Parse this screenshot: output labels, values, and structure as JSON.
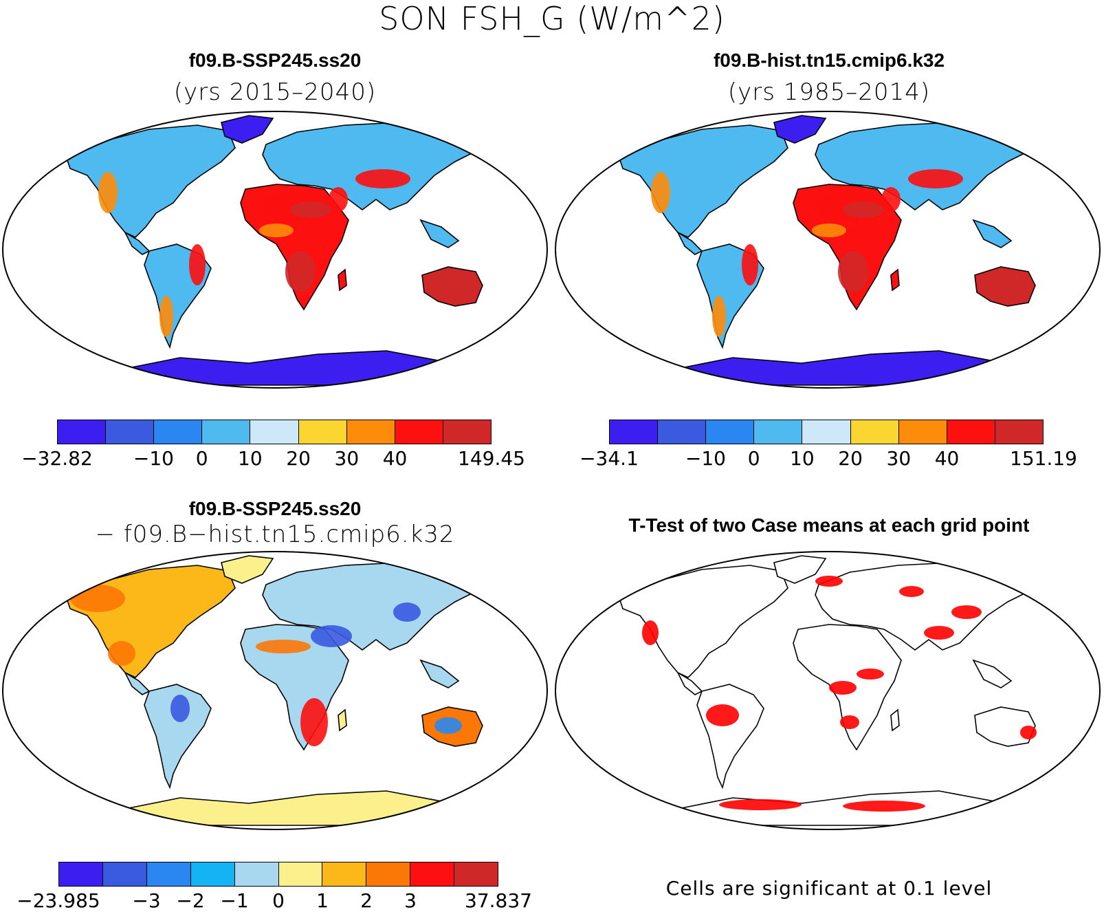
{
  "figure": {
    "title": "SON FSH_G (W/m^2)"
  },
  "panels": [
    {
      "title": "f09.B-SSP245.ss20",
      "subtitle": "(yrs 2015–2040)",
      "colors": [
        "#3c1ff0",
        "#3a5ae0",
        "#2a86f0",
        "#4fbaf0",
        "#cde8f8",
        "#fcd630",
        "#fc8c0a",
        "#fc1010",
        "#d02828"
      ],
      "ticks": [
        "−32.82",
        "−10",
        "0",
        "10",
        "20",
        "30",
        "40",
        "149.45"
      ]
    },
    {
      "title": "f09.B-hist.tn15.cmip6.k32",
      "subtitle": "(yrs 1985–2014)",
      "colors": [
        "#3c1ff0",
        "#3a5ae0",
        "#2a86f0",
        "#4fbaf0",
        "#cde8f8",
        "#fcd630",
        "#fc8c0a",
        "#fc1010",
        "#d02828"
      ],
      "ticks": [
        "−34.1",
        "−10",
        "0",
        "10",
        "20",
        "30",
        "40",
        "151.19"
      ]
    },
    {
      "title": "f09.B-SSP245.ss20",
      "subtitle": "− f09.B−hist.tn15.cmip6.k32",
      "colors": [
        "#3c1ff0",
        "#3a5ae0",
        "#2a86f0",
        "#14b4f4",
        "#a8d8f0",
        "#fcf08c",
        "#fcb818",
        "#fc7806",
        "#fc1010",
        "#d02828"
      ],
      "ticks": [
        "−23.985",
        "−3",
        "−2",
        "−1",
        "0",
        "1",
        "2",
        "3",
        "37.837"
      ]
    },
    {
      "title": "T-Test of two Case means at each grid point",
      "note": "Cells are significant at 0.1 level",
      "colors": [
        "#ff0000"
      ]
    }
  ]
}
